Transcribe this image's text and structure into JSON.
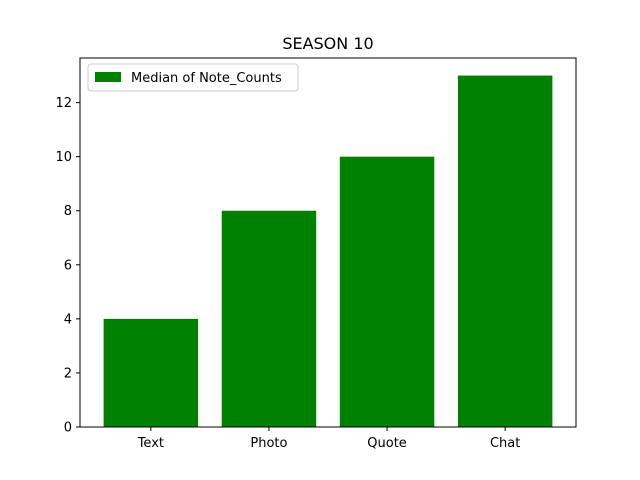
{
  "chart_data": {
    "type": "bar",
    "title": "SEASON 10",
    "xlabel": "",
    "ylabel": "",
    "categories": [
      "Text",
      "Photo",
      "Quote",
      "Chat"
    ],
    "series": [
      {
        "name": "Median of Note_Counts",
        "values": [
          4,
          8,
          10,
          13
        ],
        "color": "#008000"
      }
    ],
    "ylim": [
      0,
      13.65
    ],
    "yticks": [
      0,
      2,
      4,
      6,
      8,
      10,
      12
    ],
    "grid": false,
    "legend_position": "upper left"
  }
}
